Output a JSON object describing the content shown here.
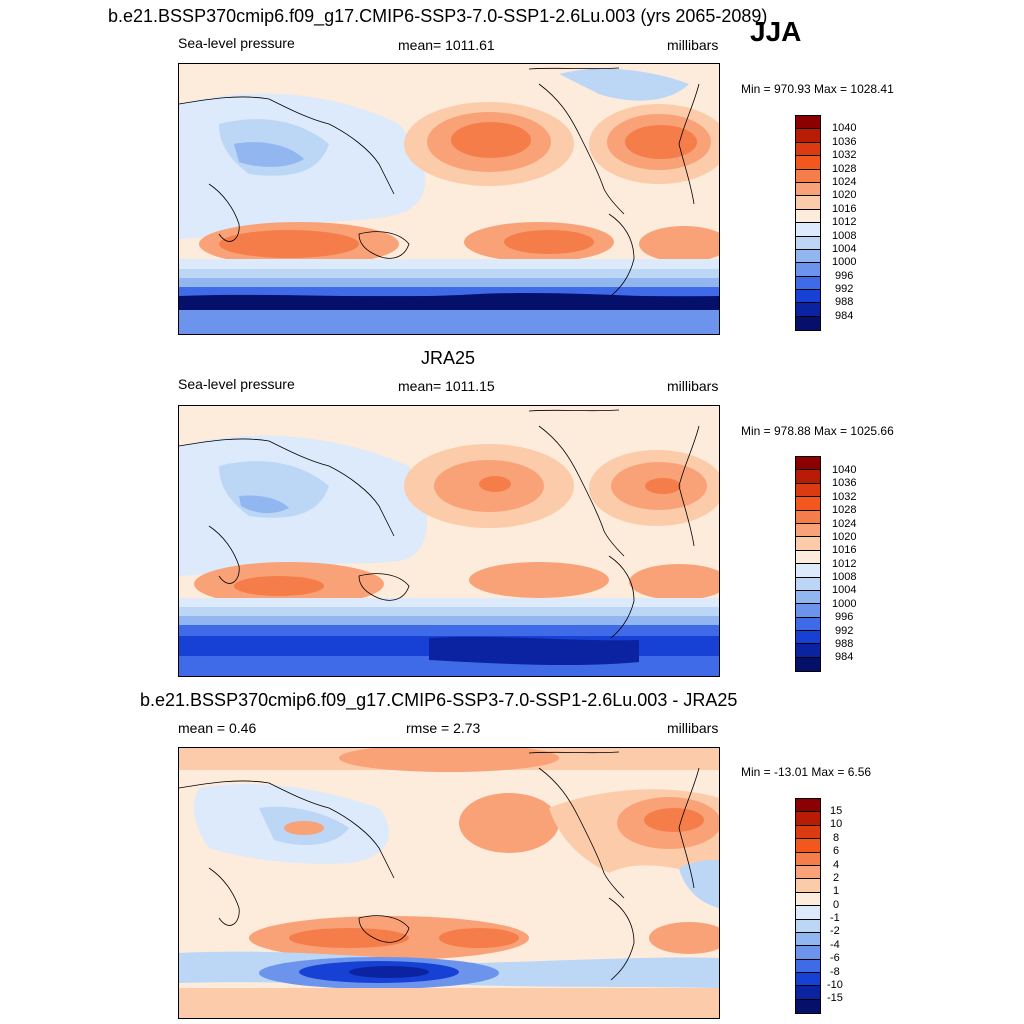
{
  "header": {
    "title": "b.e21.BSSP370cmip6.f09_g17.CMIP6-SSP3-7.0-SSP1-2.6Lu.003 (yrs 2065-2089)",
    "season": "JJA"
  },
  "panels": [
    {
      "title": "",
      "left_label": "Sea-level pressure",
      "center_label": "mean= 1011.61",
      "right_label": "millibars",
      "minmax": "Min = 970.93 Max = 1028.41",
      "colorbar": {
        "labels": [
          "1040",
          "1036",
          "1032",
          "1028",
          "1024",
          "1020",
          "1016",
          "1012",
          "1008",
          "1004",
          "1000",
          "996",
          "992",
          "988",
          "984"
        ],
        "colors": [
          "#8b0000",
          "#b81c05",
          "#dc3a10",
          "#f2571e",
          "#f57d4a",
          "#f9a278",
          "#fccba9",
          "#fdebdc",
          "#dceafb",
          "#bcd6f6",
          "#92b6f0",
          "#6d94ec",
          "#3f6be9",
          "#1641d4",
          "#0b23a0",
          "#05106b"
        ]
      }
    },
    {
      "title": "JRA25",
      "left_label": "Sea-level pressure",
      "center_label": "mean= 1011.15",
      "right_label": "millibars",
      "minmax": "Min = 978.88 Max = 1025.66",
      "colorbar": {
        "labels": [
          "1040",
          "1036",
          "1032",
          "1028",
          "1024",
          "1020",
          "1016",
          "1012",
          "1008",
          "1004",
          "1000",
          "996",
          "992",
          "988",
          "984"
        ],
        "colors": [
          "#8b0000",
          "#b81c05",
          "#dc3a10",
          "#f2571e",
          "#f57d4a",
          "#f9a278",
          "#fccba9",
          "#fdebdc",
          "#dceafb",
          "#bcd6f6",
          "#92b6f0",
          "#6d94ec",
          "#3f6be9",
          "#1641d4",
          "#0b23a0",
          "#05106b"
        ]
      }
    },
    {
      "title": "b.e21.BSSP370cmip6.f09_g17.CMIP6-SSP3-7.0-SSP1-2.6Lu.003 - JRA25",
      "left_label": "mean =   0.46",
      "center_label": "rmse =   2.73",
      "right_label": "millibars",
      "minmax": "Min = -13.01 Max =   6.56",
      "colorbar": {
        "labels": [
          "15",
          "10",
          "8",
          "6",
          "4",
          "2",
          "1",
          "0",
          "-1",
          "-2",
          "-4",
          "-6",
          "-8",
          "-10",
          "-15"
        ],
        "colors": [
          "#8b0000",
          "#b81c05",
          "#dc3a10",
          "#f2571e",
          "#f57d4a",
          "#f9a278",
          "#fccba9",
          "#fdebdc",
          "#dceafb",
          "#bcd6f6",
          "#92b6f0",
          "#6d94ec",
          "#3f6be9",
          "#1641d4",
          "#0b23a0",
          "#05106b"
        ]
      }
    }
  ]
}
